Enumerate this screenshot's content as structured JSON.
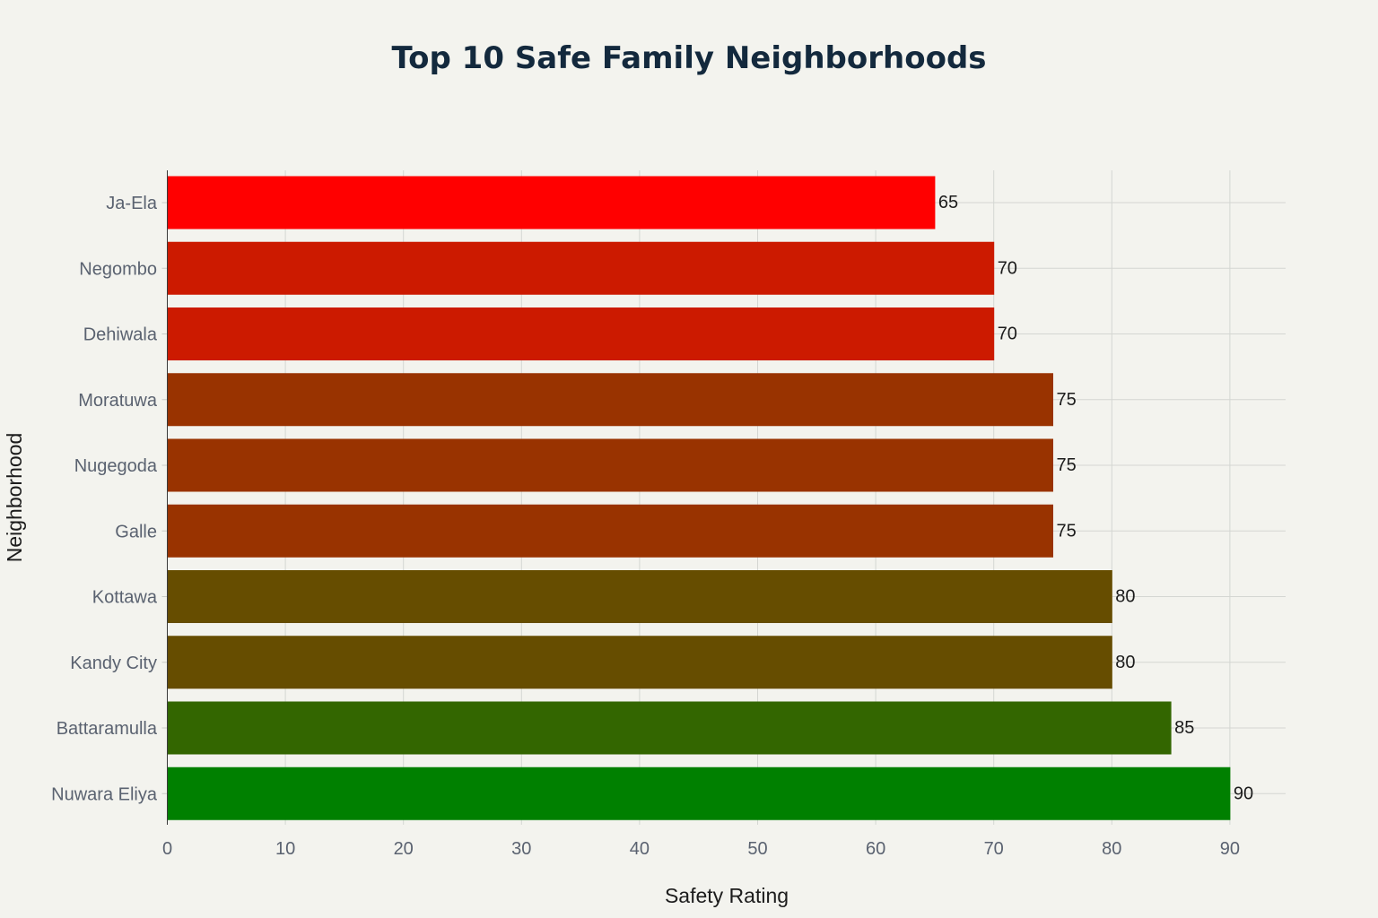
{
  "chart_data": {
    "type": "bar",
    "orientation": "horizontal",
    "title": "Top 10 Safe Family Neighborhoods",
    "xlabel": "Safety Rating",
    "ylabel": "Neighborhood",
    "xlim": [
      0,
      95
    ],
    "xticks": [
      0,
      10,
      20,
      30,
      40,
      50,
      60,
      70,
      80,
      90
    ],
    "grid": true,
    "categories": [
      "Ja-Ela",
      "Negombo",
      "Dehiwala",
      "Moratuwa",
      "Nugegoda",
      "Galle",
      "Kottawa",
      "Kandy City",
      "Battaramulla",
      "Nuwara Eliya"
    ],
    "values": [
      65,
      70,
      70,
      75,
      75,
      75,
      80,
      80,
      85,
      90
    ],
    "colors": [
      "#ff0000",
      "#cc1a00",
      "#cc1a00",
      "#993300",
      "#993300",
      "#993300",
      "#664d00",
      "#664d00",
      "#336600",
      "#008000"
    ],
    "data_labels": [
      "65",
      "70",
      "70",
      "75",
      "75",
      "75",
      "80",
      "80",
      "85",
      "90"
    ]
  }
}
